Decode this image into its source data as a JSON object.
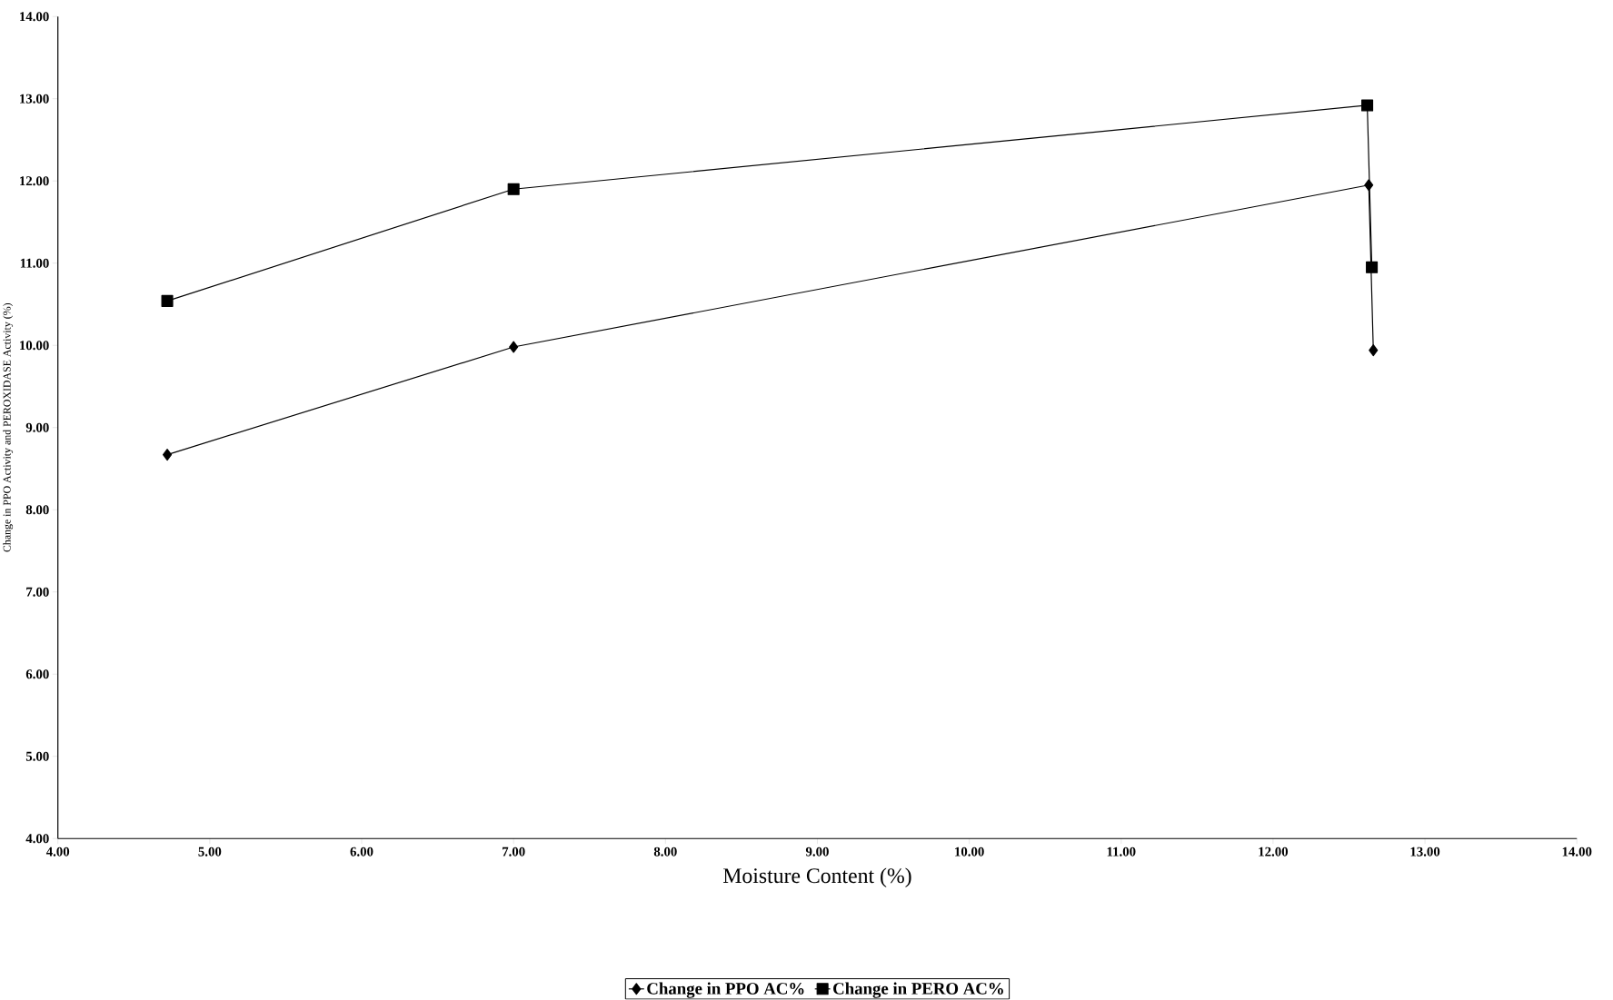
{
  "chart_data": {
    "type": "line",
    "xlabel": "Moisture Content (%)",
    "ylabel": "Change in PPO Activity and PEROXIDASE Activity (%)",
    "series": [
      {
        "name": "Change in PPO AC%",
        "color": "#000000",
        "marker": "diamond",
        "x": [
          4.72,
          7.0,
          12.63,
          12.66
        ],
        "values": [
          8.67,
          9.98,
          11.95,
          9.94
        ]
      },
      {
        "name": "Change in PERO AC%",
        "color": "#000000",
        "marker": "square",
        "x": [
          4.72,
          7.0,
          12.62,
          12.65
        ],
        "values": [
          10.54,
          11.9,
          12.92,
          10.95
        ]
      }
    ],
    "xlim": [
      4,
      14
    ],
    "ylim": [
      4,
      14
    ],
    "xticks": [
      {
        "value": 4,
        "label": "4.00"
      },
      {
        "value": 5,
        "label": "5.00"
      },
      {
        "value": 6,
        "label": "6.00"
      },
      {
        "value": 7,
        "label": "7.00"
      },
      {
        "value": 8,
        "label": "8.00"
      },
      {
        "value": 9,
        "label": "9.00"
      },
      {
        "value": 10,
        "label": "10.00"
      },
      {
        "value": 11,
        "label": "11.00"
      },
      {
        "value": 12,
        "label": "12.00"
      },
      {
        "value": 13,
        "label": "13.00"
      },
      {
        "value": 14,
        "label": "14.00"
      }
    ],
    "yticks": [
      {
        "value": 4,
        "label": "4.00"
      },
      {
        "value": 5,
        "label": "5.00"
      },
      {
        "value": 6,
        "label": "6.00"
      },
      {
        "value": 7,
        "label": "7.00"
      },
      {
        "value": 8,
        "label": "8.00"
      },
      {
        "value": 9,
        "label": "9.00"
      },
      {
        "value": 10,
        "label": "10.00"
      },
      {
        "value": 11,
        "label": "11.00"
      },
      {
        "value": 12,
        "label": "12.00"
      },
      {
        "value": 13,
        "label": "13.00"
      },
      {
        "value": 14,
        "label": "14.00"
      }
    ],
    "grid": false,
    "legend": "bottom",
    "line_style": "solid"
  }
}
